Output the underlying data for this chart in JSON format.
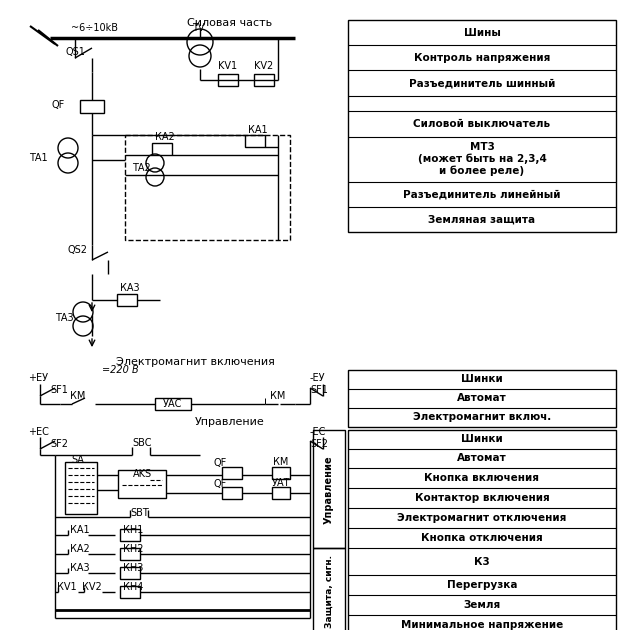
{
  "bg_color": "#ffffff",
  "lc": "#000000",
  "fig_w": 6.25,
  "fig_h": 6.3,
  "dpi": 100,
  "table1_rows": [
    [
      "Шины",
      0.04
    ],
    [
      "Контроль напряжения",
      0.04
    ],
    [
      "Разъединитель шинный",
      0.04
    ],
    [
      "",
      0.025
    ],
    [
      "Силовой выключатель",
      0.04
    ],
    [
      "МТ3\n(может быть на 2,3,4\nи более реле)",
      0.072
    ],
    [
      "Разъединитель линейный",
      0.04
    ],
    [
      "Земляная защита",
      0.04
    ]
  ],
  "table2_rows": [
    [
      "Шинки",
      0.03
    ],
    [
      "Автомат",
      0.03
    ],
    [
      "Электромагнит включ.",
      0.03
    ]
  ],
  "table3_rows": [
    [
      "Шинки",
      0.03
    ],
    [
      "Автомат",
      0.03
    ],
    [
      "Кнопка включения",
      0.032
    ],
    [
      "Контактор включения",
      0.032
    ],
    [
      "Электромагнит отключения",
      0.032
    ],
    [
      "Кнопка отключения",
      0.032
    ],
    [
      "К3",
      0.042
    ],
    [
      "Перегрузка",
      0.032
    ],
    [
      "Земля",
      0.032
    ],
    [
      "Минимальное напряжение",
      0.032
    ]
  ]
}
